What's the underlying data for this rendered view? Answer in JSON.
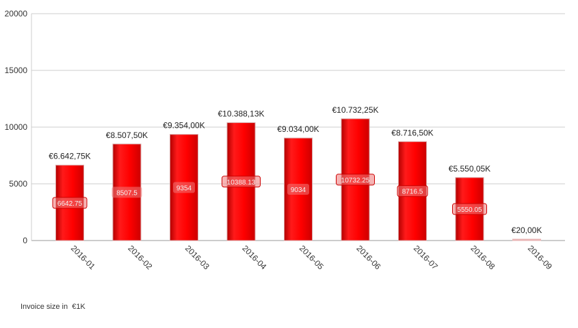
{
  "chart_data": {
    "type": "bar",
    "categories": [
      "2016-01",
      "2016-02",
      "2016-03",
      "2016-04",
      "2016-05",
      "2016-06",
      "2016-07",
      "2016-08",
      "2016-09"
    ],
    "values": [
      6642.75,
      8507.5,
      9354,
      10388.13,
      9034,
      10732.25,
      8716.5,
      5550.05,
      20
    ],
    "value_labels": [
      "€6.642,75K",
      "€8.507,50K",
      "€9.354,00K",
      "€10.388,13K",
      "€9.034,00K",
      "€10.732,25K",
      "€8.716,50K",
      "€5.550,05K",
      "€20,00K"
    ],
    "inner_labels": [
      "6642.75",
      "8507.5",
      "9354",
      "10388.13",
      "9034",
      "10732.25",
      "8716.5",
      "5550.05",
      ""
    ],
    "inner_label_outlined": [
      true,
      false,
      false,
      true,
      false,
      true,
      true,
      true,
      false
    ],
    "y_ticks": [
      0,
      5000,
      10000,
      15000,
      20000
    ],
    "ylim": [
      0,
      20000
    ],
    "grid": true,
    "bar_color": "#e60000",
    "bar_color_light": "#e8b4b4",
    "outline_color": "#cc0000",
    "footnote": "Invoice size in  €1K"
  }
}
